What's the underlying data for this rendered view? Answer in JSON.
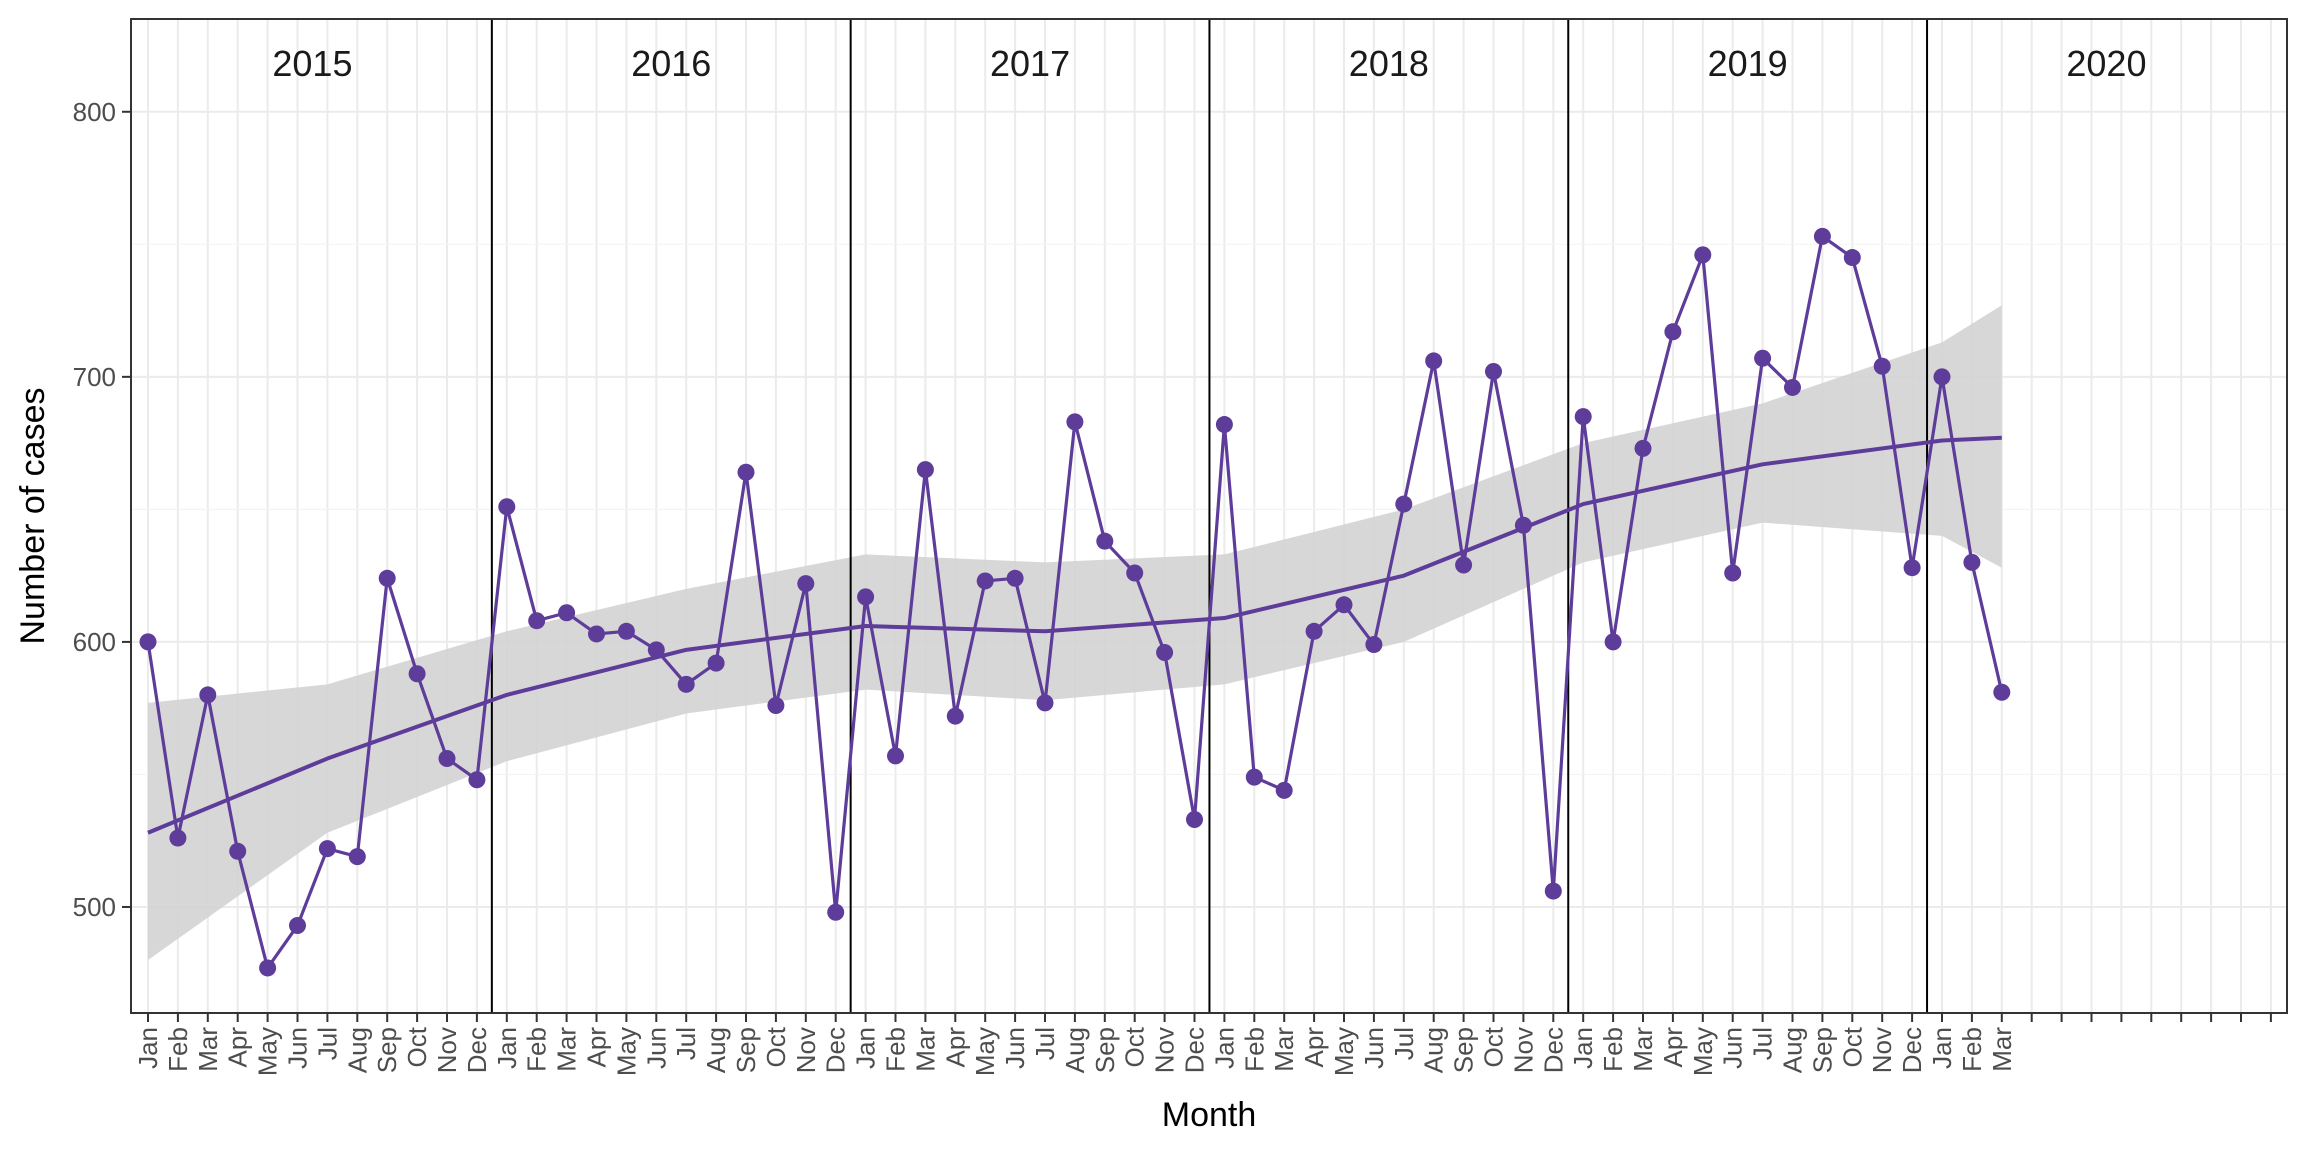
{
  "chart_data": {
    "type": "line",
    "title": "",
    "xlabel": "Month",
    "ylabel": "Number of cases",
    "ylim": [
      460,
      835
    ],
    "y_ticks": [
      500,
      600,
      700,
      800
    ],
    "grid": true,
    "theme": "white background, light grey gridlines, black panel border",
    "colors": {
      "series": "#5e3c99",
      "ribbon": "#d3d3d3",
      "year_divider": "#000000",
      "grid": "#ebebeb"
    },
    "year_labels": [
      "2015",
      "2016",
      "2017",
      "2018",
      "2019",
      "2020"
    ],
    "month_labels": [
      "Jan",
      "Feb",
      "Mar",
      "Apr",
      "May",
      "Jun",
      "Jul",
      "Aug",
      "Sep",
      "Oct",
      "Nov",
      "Dec"
    ],
    "x_extent_months": 72,
    "series": [
      {
        "values": [
          600,
          526,
          580,
          521,
          477,
          493,
          522,
          519,
          624,
          588,
          556,
          548,
          651,
          608,
          611,
          603,
          604,
          597,
          584,
          592,
          664,
          576,
          622,
          498,
          617,
          557,
          665,
          572,
          623,
          624,
          577,
          683,
          638,
          626,
          596,
          533,
          682,
          549,
          544,
          604,
          614,
          599,
          652,
          706,
          629,
          702,
          644,
          506,
          685,
          600,
          673,
          717,
          746,
          626,
          707,
          696,
          753,
          745,
          704,
          628,
          700,
          630,
          581
        ]
      }
    ],
    "trend": {
      "method": "smooth",
      "x_month_index": [
        0,
        6,
        12,
        18,
        24,
        30,
        36,
        42,
        48,
        54,
        60,
        62
      ],
      "fit": [
        528,
        556,
        580,
        597,
        606,
        604,
        609,
        625,
        652,
        667,
        676,
        677
      ],
      "lower": [
        480,
        528,
        555,
        573,
        582,
        578,
        584,
        600,
        630,
        645,
        640,
        628
      ],
      "upper": [
        577,
        584,
        604,
        620,
        633,
        630,
        633,
        650,
        675,
        690,
        713,
        727
      ]
    }
  }
}
